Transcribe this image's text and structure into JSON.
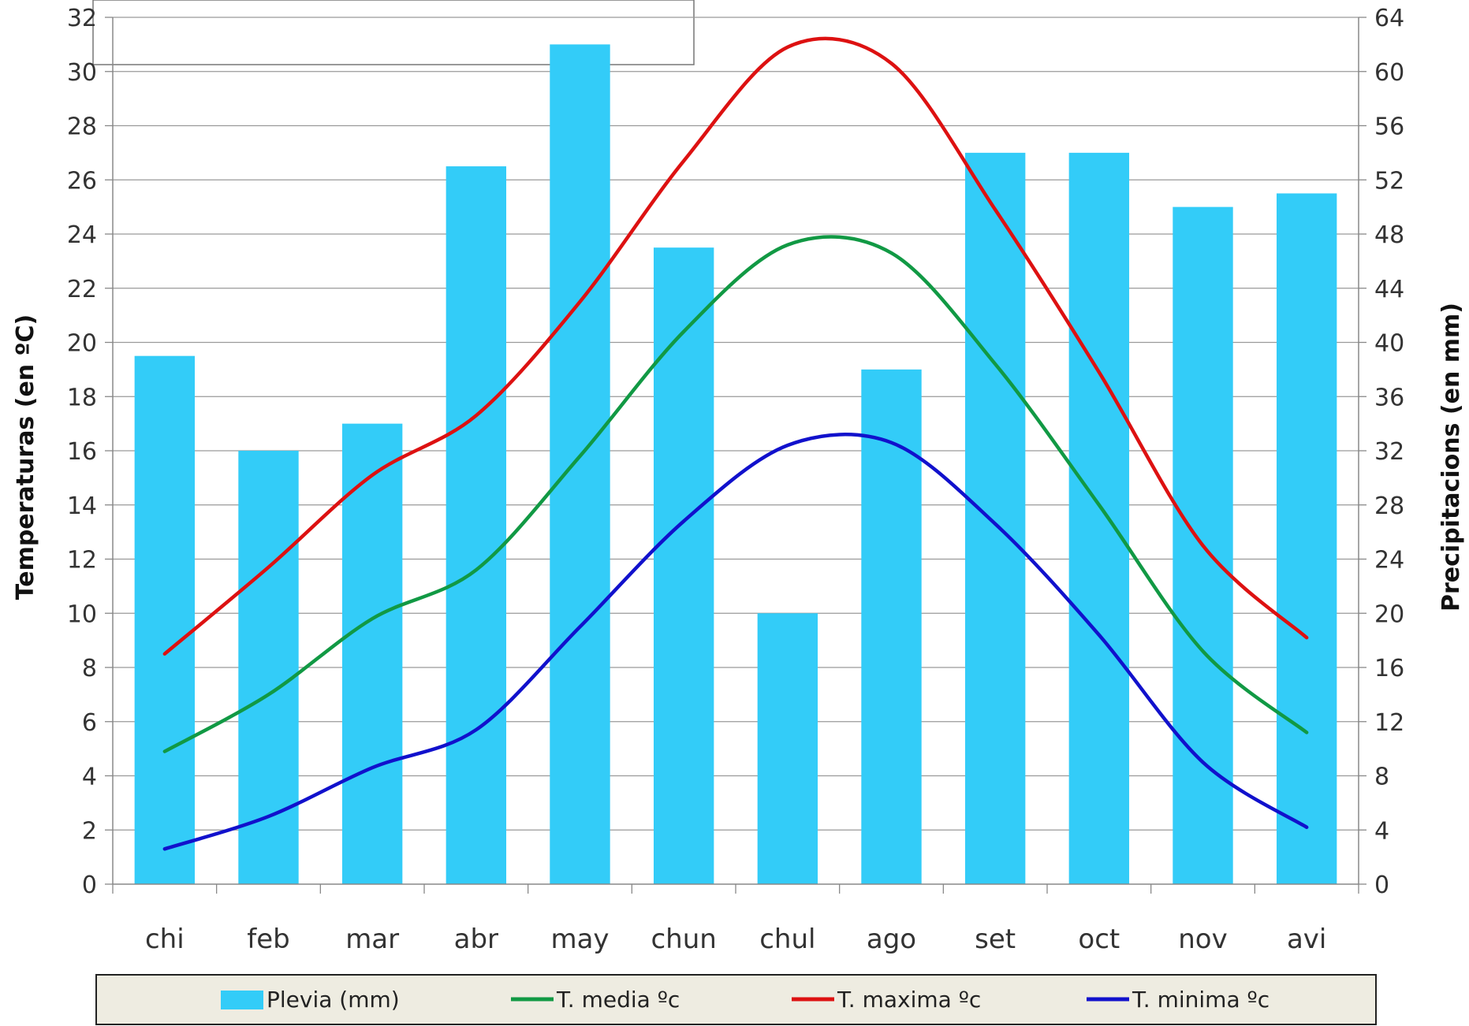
{
  "chart_data": {
    "type": "bar",
    "categories": [
      "chi",
      "feb",
      "mar",
      "abr",
      "may",
      "chun",
      "chul",
      "ago",
      "set",
      "oct",
      "nov",
      "avi"
    ],
    "series": [
      {
        "name": "Plevia (mm)",
        "type": "bar",
        "axis": "right",
        "color": "#33ccf8",
        "values": [
          39,
          32,
          34,
          53,
          62,
          47,
          20,
          38,
          54,
          54,
          50,
          51
        ]
      },
      {
        "name": "T. media ºc",
        "type": "line",
        "axis": "left",
        "color": "#119944",
        "values": [
          4.9,
          7.0,
          9.8,
          11.6,
          15.8,
          20.4,
          23.6,
          23.3,
          19.2,
          14.0,
          8.6,
          5.6
        ]
      },
      {
        "name": "T. maxima ºc",
        "type": "line",
        "axis": "left",
        "color": "#dd1111",
        "values": [
          8.5,
          11.7,
          15.1,
          17.3,
          21.5,
          26.7,
          30.9,
          30.3,
          24.9,
          18.9,
          12.5,
          9.1
        ]
      },
      {
        "name": "T. minima ºc",
        "type": "line",
        "axis": "left",
        "color": "#1111cc",
        "values": [
          1.3,
          2.5,
          4.3,
          5.7,
          9.5,
          13.4,
          16.2,
          16.3,
          13.3,
          9.2,
          4.5,
          2.1
        ]
      }
    ],
    "ylabel": "Temperaturas (en ºC)",
    "y2label": "Precipitacions (en mm)",
    "ylim": [
      0,
      32
    ],
    "y2lim": [
      0,
      64
    ],
    "yticks": [
      "0",
      "2",
      "4",
      "6",
      "8",
      "10",
      "12",
      "14",
      "16",
      "18",
      "20",
      "22",
      "24",
      "26",
      "28",
      "30",
      "32"
    ],
    "y2ticks": [
      "0",
      "4",
      "8",
      "12",
      "16",
      "20",
      "24",
      "28",
      "32",
      "36",
      "40",
      "44",
      "48",
      "52",
      "56",
      "60",
      "64"
    ],
    "grid": true,
    "legend_position": "bottom"
  }
}
